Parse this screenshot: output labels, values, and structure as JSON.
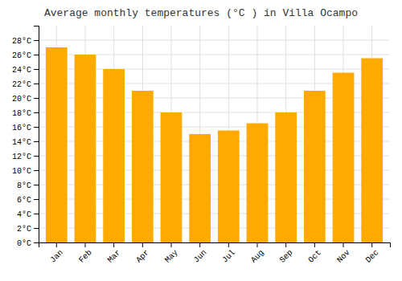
{
  "chart_data": {
    "type": "bar",
    "title": "Average monthly temperatures (°C ) in Villa Ocampo",
    "categories": [
      "Jan",
      "Feb",
      "Mar",
      "Apr",
      "May",
      "Jun",
      "Jul",
      "Aug",
      "Sep",
      "Oct",
      "Nov",
      "Dec"
    ],
    "values": [
      27,
      26,
      24,
      21,
      18,
      15,
      15.5,
      16.5,
      18,
      21,
      23.5,
      25.5
    ],
    "color": "#FFAA00",
    "ylim": [
      0,
      30
    ],
    "yticks": [
      {
        "value": 0,
        "label": "0°C"
      },
      {
        "value": 2,
        "label": "2°C"
      },
      {
        "value": 4,
        "label": "4°C"
      },
      {
        "value": 6,
        "label": "6°C"
      },
      {
        "value": 8,
        "label": "8°C"
      },
      {
        "value": 10,
        "label": "10°C"
      },
      {
        "value": 12,
        "label": "12°C"
      },
      {
        "value": 14,
        "label": "14°C"
      },
      {
        "value": 16,
        "label": "16°C"
      },
      {
        "value": 18,
        "label": "18°C"
      },
      {
        "value": 20,
        "label": "20°C"
      },
      {
        "value": 22,
        "label": "22°C"
      },
      {
        "value": 24,
        "label": "24°C"
      },
      {
        "value": 26,
        "label": "26°C"
      },
      {
        "value": 28,
        "label": "28°C"
      }
    ],
    "grid": true
  }
}
